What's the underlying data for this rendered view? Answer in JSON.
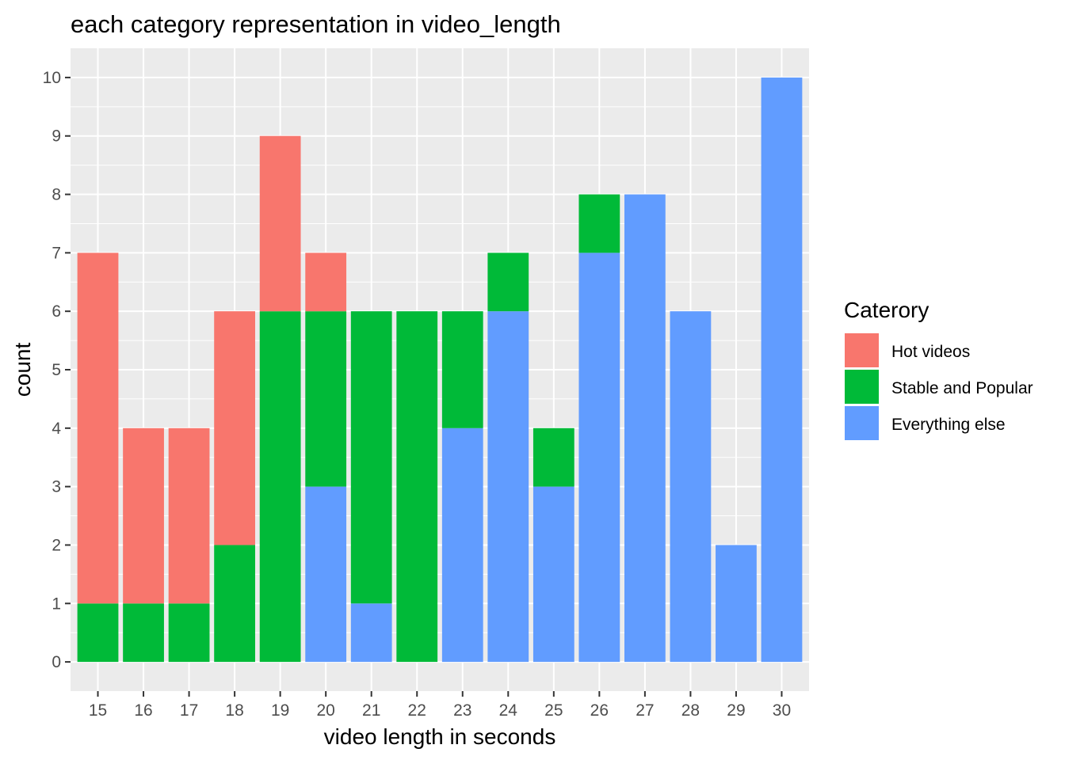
{
  "chart_data": {
    "type": "bar",
    "stacked": true,
    "title": "each category representation in video_length",
    "xlabel": "video length in seconds",
    "ylabel": "count",
    "categories": [
      "15",
      "16",
      "17",
      "18",
      "19",
      "20",
      "21",
      "22",
      "23",
      "24",
      "25",
      "26",
      "27",
      "28",
      "29",
      "30"
    ],
    "ylim": [
      -0.5,
      10.5
    ],
    "yticks": [
      0,
      1,
      2,
      3,
      4,
      5,
      6,
      7,
      8,
      9,
      10
    ],
    "grid": true,
    "legend_position": "right",
    "legend_title": "Caterory",
    "series": [
      {
        "name": "Everything else",
        "color": "#619CFF",
        "values": [
          0,
          0,
          0,
          0,
          0,
          3,
          1,
          0,
          4,
          6,
          3,
          7,
          8,
          6,
          2,
          10
        ]
      },
      {
        "name": "Stable and Popular",
        "color": "#00BA38",
        "values": [
          1,
          1,
          1,
          2,
          6,
          3,
          5,
          6,
          2,
          1,
          1,
          1,
          0,
          0,
          0,
          0
        ]
      },
      {
        "name": "Hot videos",
        "color": "#F8766D",
        "values": [
          6,
          3,
          3,
          4,
          3,
          1,
          0,
          0,
          0,
          0,
          0,
          0,
          0,
          0,
          0,
          0
        ]
      }
    ],
    "legend_order": [
      "Hot videos",
      "Stable and Popular",
      "Everything else"
    ]
  }
}
